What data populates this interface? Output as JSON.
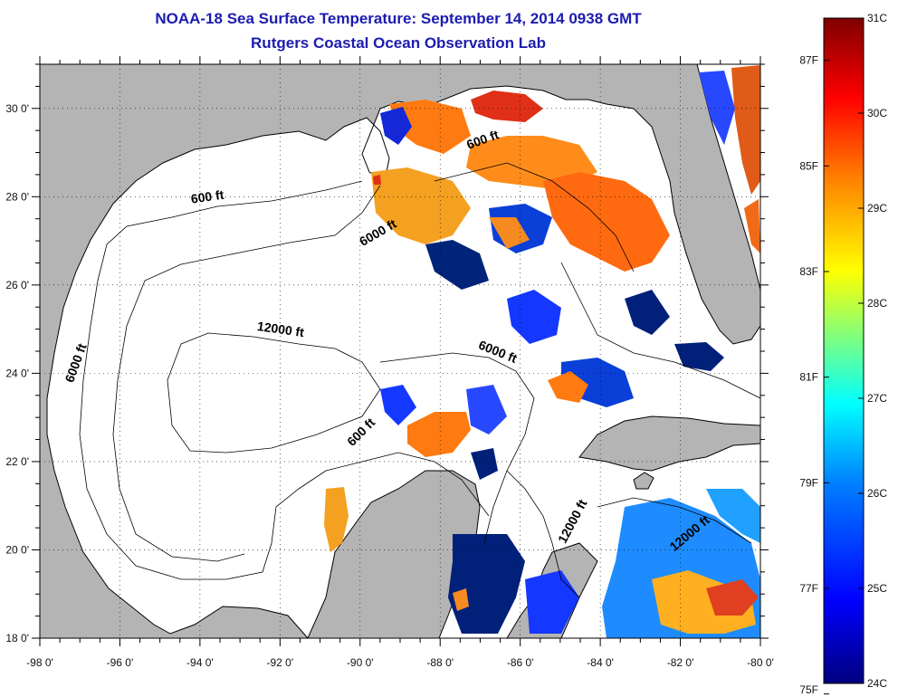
{
  "titles": {
    "line1": "NOAA-18 Sea Surface Temperature:  September 14, 2014 0938 GMT",
    "line2": "Rutgers Coastal Ocean Observation Lab"
  },
  "axes": {
    "lon_labels": [
      "-98 0'",
      "-96 0'",
      "-94 0'",
      "-92 0'",
      "-90 0'",
      "-88 0'",
      "-86 0'",
      "-84 0'",
      "-82 0'",
      "-80 0'"
    ],
    "lon_values": [
      -98,
      -96,
      -94,
      -92,
      -90,
      -88,
      -86,
      -84,
      -82,
      -80
    ],
    "lat_labels": [
      "18 0'",
      "20 0'",
      "22 0'",
      "24 0'",
      "26 0'",
      "28 0'",
      "30 0'"
    ],
    "lat_values": [
      18,
      20,
      22,
      24,
      26,
      28,
      30
    ],
    "lon_range": [
      -98,
      -80
    ],
    "lat_range": [
      18,
      31
    ],
    "grid": "dotted"
  },
  "contour_labels": [
    {
      "text": "600 ft",
      "lon": -93.8,
      "lat": 27.9,
      "angle": -8
    },
    {
      "text": "600 ft",
      "lon": -86.9,
      "lat": 29.2,
      "angle": -20
    },
    {
      "text": "6000 ft",
      "lon": -89.5,
      "lat": 27.1,
      "angle": -30
    },
    {
      "text": "12000 ft",
      "lon": -92.0,
      "lat": 24.9,
      "angle": 8
    },
    {
      "text": "6000 ft",
      "lon": -86.6,
      "lat": 24.4,
      "angle": 22
    },
    {
      "text": "6000 ft",
      "lon": -97.0,
      "lat": 24.2,
      "angle": -70
    },
    {
      "text": "600 ft",
      "lon": -89.9,
      "lat": 22.6,
      "angle": -45
    },
    {
      "text": "12000 ft",
      "lon": -84.6,
      "lat": 20.6,
      "angle": -62
    },
    {
      "text": "12000 ft",
      "lon": -81.7,
      "lat": 20.3,
      "angle": -40
    }
  ],
  "colorbar": {
    "celsius_labels": [
      "31C",
      "30C",
      "29C",
      "28C",
      "27C",
      "26C",
      "25C",
      "24C"
    ],
    "celsius_values": [
      31,
      30,
      29,
      28,
      27,
      26,
      25,
      24
    ],
    "fahrenheit_labels": [
      "87F",
      "85F",
      "83F",
      "81F",
      "79F",
      "77F",
      "75F"
    ],
    "fahrenheit_values": [
      87,
      85,
      83,
      81,
      79,
      77,
      75
    ],
    "range_c": [
      24,
      31
    ],
    "colors": [
      "#00007f",
      "#0000ff",
      "#007fff",
      "#00ffff",
      "#7fff7f",
      "#ffff00",
      "#ff7f00",
      "#ff0000",
      "#7f0000"
    ]
  },
  "colors": {
    "land": "#b4b4b4",
    "ocean_no_data": "#ffffff",
    "coastline": "#000000"
  }
}
